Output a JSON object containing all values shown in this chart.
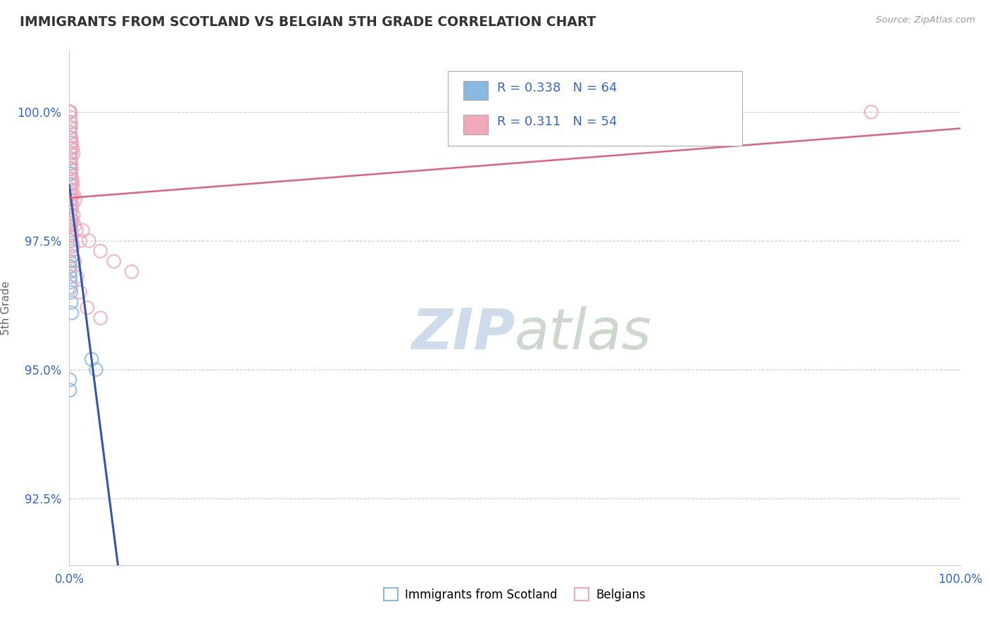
{
  "title": "IMMIGRANTS FROM SCOTLAND VS BELGIAN 5TH GRADE CORRELATION CHART",
  "source_text": "Source: ZipAtlas.com",
  "ylabel": "5th Grade",
  "xlim": [
    0,
    100
  ],
  "ylim": [
    91.2,
    101.2
  ],
  "yticks": [
    92.5,
    95.0,
    97.5,
    100.0
  ],
  "ytick_labels": [
    "92.5%",
    "95.0%",
    "97.5%",
    "100.0%"
  ],
  "color_scotland": "#89b8e0",
  "color_belgians": "#f2a8bb",
  "color_line_scotland": "#3355aa",
  "color_line_belgians": "#e06080",
  "background_color": "#ffffff",
  "watermark_color": "#c8d8e8",
  "scotland_x": [
    0.05,
    0.05,
    0.05,
    0.05,
    0.06,
    0.06,
    0.07,
    0.07,
    0.08,
    0.08,
    0.09,
    0.09,
    0.1,
    0.1,
    0.11,
    0.11,
    0.12,
    0.12,
    0.13,
    0.13,
    0.14,
    0.15,
    0.15,
    0.16,
    0.16,
    0.17,
    0.18,
    0.18,
    0.19,
    0.2,
    0.05,
    0.06,
    0.07,
    0.08,
    0.09,
    0.1,
    0.11,
    0.12,
    0.13,
    0.14,
    0.15,
    0.16,
    0.17,
    0.18,
    0.19,
    0.2,
    0.22,
    0.25,
    0.28,
    0.3,
    0.05,
    0.06,
    0.07,
    0.08,
    0.1,
    0.12,
    0.15,
    0.18,
    0.22,
    0.28,
    2.5,
    3.0,
    0.05,
    0.06
  ],
  "scotland_y": [
    100.0,
    100.0,
    100.0,
    100.0,
    100.0,
    100.0,
    100.0,
    100.0,
    100.0,
    100.0,
    99.8,
    99.7,
    99.6,
    99.5,
    99.5,
    99.3,
    99.4,
    99.2,
    99.1,
    99.0,
    99.3,
    99.2,
    99.1,
    99.0,
    98.9,
    98.9,
    98.8,
    98.7,
    98.6,
    98.6,
    98.9,
    98.8,
    98.7,
    98.6,
    98.5,
    98.4,
    98.3,
    98.3,
    98.2,
    98.1,
    98.0,
    97.9,
    97.9,
    97.8,
    97.7,
    97.6,
    97.5,
    97.4,
    97.3,
    97.2,
    97.1,
    97.0,
    97.0,
    96.9,
    96.8,
    96.7,
    96.6,
    96.5,
    96.3,
    96.1,
    95.2,
    95.0,
    94.8,
    94.6
  ],
  "belgians_x": [
    0.05,
    0.08,
    0.1,
    0.12,
    0.15,
    0.18,
    0.22,
    0.28,
    0.35,
    0.45,
    0.06,
    0.09,
    0.12,
    0.16,
    0.2,
    0.25,
    0.32,
    0.4,
    0.5,
    0.65,
    0.07,
    0.11,
    0.15,
    0.2,
    0.26,
    0.35,
    0.45,
    0.6,
    0.8,
    1.2,
    0.08,
    0.13,
    0.18,
    0.25,
    0.35,
    1.5,
    2.2,
    3.5,
    5.0,
    7.0,
    0.1,
    0.16,
    0.22,
    0.3,
    0.42,
    0.6,
    0.85,
    1.2,
    2.0,
    3.5,
    0.12,
    0.2,
    0.3,
    90.0
  ],
  "belgians_y": [
    100.0,
    100.0,
    100.0,
    99.9,
    99.8,
    99.7,
    99.5,
    99.4,
    99.3,
    99.2,
    99.6,
    99.5,
    99.3,
    99.2,
    99.0,
    98.9,
    98.7,
    98.6,
    98.4,
    98.3,
    99.1,
    98.9,
    98.7,
    98.6,
    98.4,
    98.2,
    98.0,
    97.8,
    97.7,
    97.5,
    98.7,
    98.5,
    98.3,
    98.1,
    97.9,
    97.7,
    97.5,
    97.3,
    97.1,
    96.9,
    98.4,
    98.1,
    97.9,
    97.6,
    97.4,
    97.1,
    96.8,
    96.5,
    96.2,
    96.0,
    97.8,
    97.5,
    97.2,
    100.0
  ]
}
